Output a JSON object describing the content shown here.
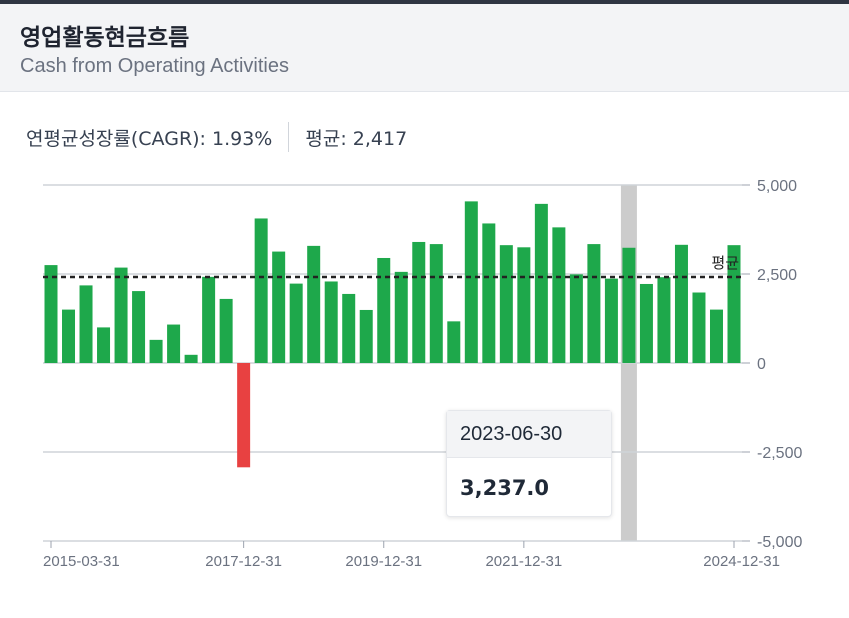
{
  "header": {
    "title": "영업활동현금흐름",
    "subtitle": "Cash from Operating Activities"
  },
  "stats": {
    "cagr": "연평균성장률(CAGR): 1.93%",
    "average": "평균: 2,417"
  },
  "tooltip": {
    "date": "2023-06-30",
    "value": "3,237.0"
  },
  "chart_data": {
    "type": "bar",
    "x_ticks": [
      "2015-03-31",
      "2017-12-31",
      "2019-12-31",
      "2021-12-31",
      "2024-12-31"
    ],
    "values": [
      2750,
      1500,
      2180,
      1000,
      2680,
      2020,
      650,
      1080,
      230,
      2420,
      1800,
      -2930,
      4060,
      3130,
      2230,
      3290,
      2290,
      1940,
      1490,
      2950,
      2560,
      3400,
      3340,
      1170,
      4540,
      3920,
      3310,
      3250,
      4470,
      3810,
      2490,
      3340,
      2370,
      3237,
      2220,
      2410,
      3320,
      1980,
      1500,
      3310
    ],
    "ylim": [
      -5000,
      5000
    ],
    "y_ticks": [
      5000,
      2500,
      0,
      -2500,
      -5000
    ],
    "y_tick_labels": [
      "5,000",
      "2,500",
      "0",
      "-2,500",
      "-5,000"
    ],
    "average": 2417,
    "average_label": "평균",
    "highlight_index": 33,
    "positive_color": "#1ea84b",
    "negative_color": "#e84141",
    "highlight_band_color": "#cccccc",
    "grid": true
  }
}
